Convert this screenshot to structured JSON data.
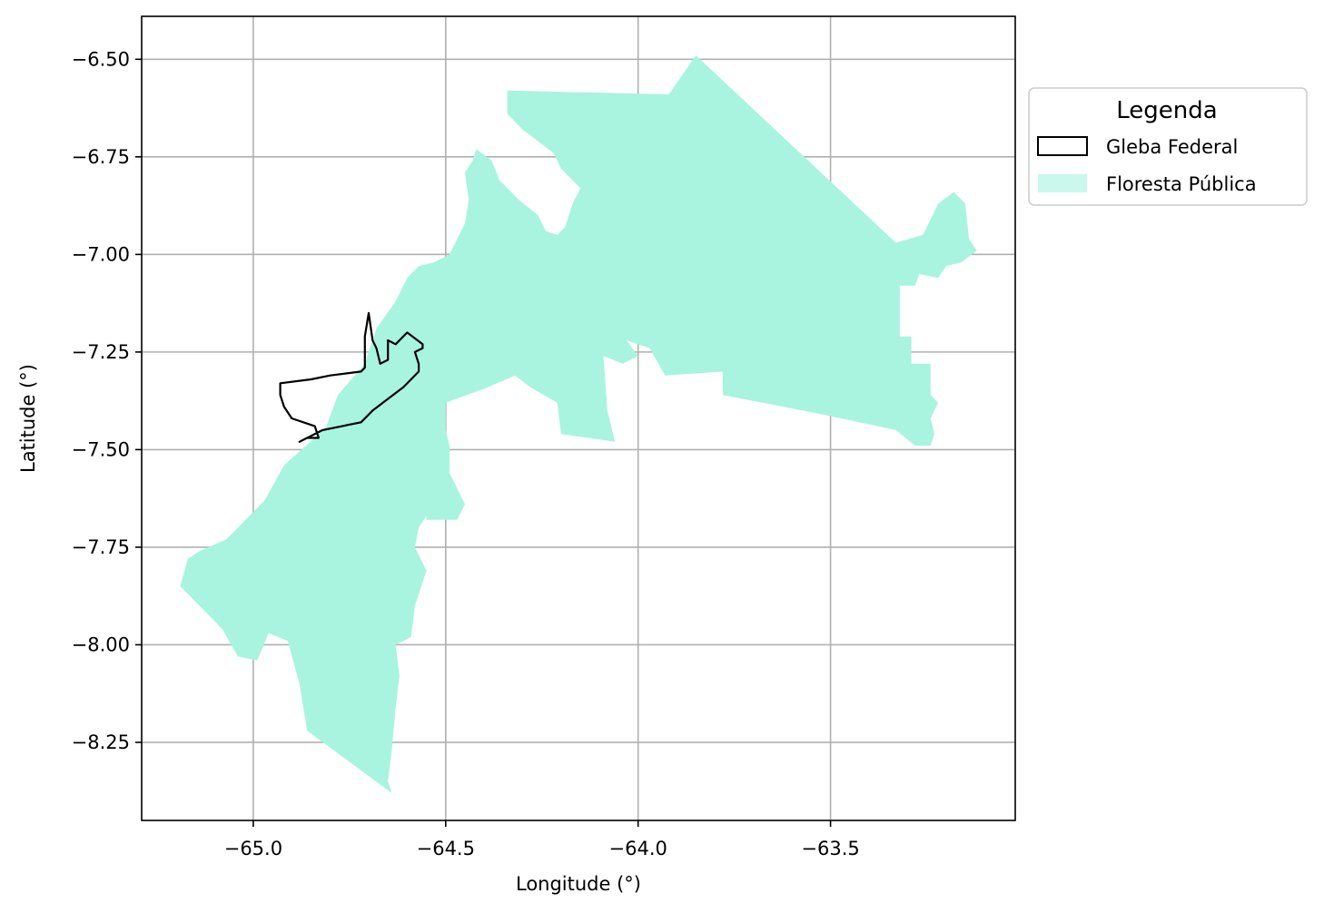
{
  "chart_data": {
    "type": "map",
    "xlabel": "Longitude (°)",
    "ylabel": "Latitude (°)",
    "xlim": [
      -65.29,
      -63.02
    ],
    "ylim": [
      -8.45,
      -6.39
    ],
    "xticks": [
      -65.0,
      -64.5,
      -64.0,
      -63.5
    ],
    "xtick_labels": [
      "−65.0",
      "−64.5",
      "−64.0",
      "−63.5"
    ],
    "yticks": [
      -6.5,
      -6.75,
      -7.0,
      -7.25,
      -7.5,
      -7.75,
      -8.0,
      -8.25
    ],
    "ytick_labels": [
      "−6.50",
      "−6.75",
      "−7.00",
      "−7.25",
      "−7.50",
      "−7.75",
      "−8.00",
      "−8.25"
    ],
    "grid": true,
    "legend": {
      "title": "Legenda",
      "placement": "outside-right-top",
      "entries": [
        {
          "label": "Gleba Federal",
          "style": "outline",
          "color": "#000000"
        },
        {
          "label": "Floresta Pública",
          "style": "fill",
          "color": "#a8f4df"
        }
      ]
    },
    "layers": [
      {
        "name": "Floresta Pública",
        "color": "#a8f4df",
        "polygons": [
          [
            [
              -64.34,
              -6.58
            ],
            [
              -63.92,
              -6.59
            ],
            [
              -63.85,
              -6.49
            ],
            [
              -63.33,
              -6.97
            ],
            [
              -63.26,
              -6.95
            ],
            [
              -63.22,
              -6.87
            ],
            [
              -63.18,
              -6.84
            ],
            [
              -63.15,
              -6.87
            ],
            [
              -63.14,
              -6.96
            ],
            [
              -63.12,
              -6.99
            ],
            [
              -63.16,
              -7.02
            ],
            [
              -63.2,
              -7.03
            ],
            [
              -63.22,
              -7.06
            ],
            [
              -63.27,
              -7.05
            ],
            [
              -63.28,
              -7.08
            ],
            [
              -63.32,
              -7.08
            ],
            [
              -63.32,
              -7.21
            ],
            [
              -63.29,
              -7.21
            ],
            [
              -63.29,
              -7.28
            ],
            [
              -63.24,
              -7.28
            ],
            [
              -63.24,
              -7.36
            ],
            [
              -63.22,
              -7.38
            ],
            [
              -63.24,
              -7.42
            ],
            [
              -63.23,
              -7.46
            ],
            [
              -63.24,
              -7.49
            ],
            [
              -63.28,
              -7.49
            ],
            [
              -63.33,
              -7.45
            ],
            [
              -63.52,
              -7.41
            ],
            [
              -63.78,
              -7.36
            ],
            [
              -63.78,
              -7.3
            ],
            [
              -63.93,
              -7.31
            ],
            [
              -63.97,
              -7.24
            ],
            [
              -64.03,
              -7.22
            ],
            [
              -64.0,
              -7.26
            ],
            [
              -64.04,
              -7.28
            ],
            [
              -64.09,
              -7.26
            ],
            [
              -64.08,
              -7.4
            ],
            [
              -64.06,
              -7.48
            ],
            [
              -64.2,
              -7.46
            ],
            [
              -64.21,
              -7.38
            ],
            [
              -64.28,
              -7.34
            ],
            [
              -64.32,
              -7.31
            ],
            [
              -64.39,
              -7.34
            ],
            [
              -64.5,
              -7.38
            ],
            [
              -64.5,
              -7.45
            ],
            [
              -64.49,
              -7.49
            ],
            [
              -64.49,
              -7.56
            ],
            [
              -64.47,
              -7.6
            ],
            [
              -64.45,
              -7.64
            ],
            [
              -64.47,
              -7.68
            ],
            [
              -64.55,
              -7.68
            ],
            [
              -64.55,
              -7.67
            ],
            [
              -64.57,
              -7.7
            ],
            [
              -64.58,
              -7.75
            ],
            [
              -64.55,
              -7.81
            ],
            [
              -64.58,
              -7.9
            ],
            [
              -64.59,
              -7.98
            ],
            [
              -64.63,
              -8.0
            ],
            [
              -64.62,
              -8.08
            ],
            [
              -64.63,
              -8.16
            ],
            [
              -64.64,
              -8.27
            ],
            [
              -64.65,
              -8.35
            ],
            [
              -64.64,
              -8.38
            ],
            [
              -64.86,
              -8.22
            ],
            [
              -64.88,
              -8.1
            ],
            [
              -64.91,
              -7.99
            ],
            [
              -64.96,
              -7.97
            ],
            [
              -64.99,
              -8.04
            ],
            [
              -65.04,
              -8.03
            ],
            [
              -65.08,
              -7.96
            ],
            [
              -65.16,
              -7.88
            ],
            [
              -65.19,
              -7.85
            ],
            [
              -65.17,
              -7.78
            ],
            [
              -65.14,
              -7.76
            ],
            [
              -65.07,
              -7.73
            ],
            [
              -64.97,
              -7.63
            ],
            [
              -64.92,
              -7.54
            ],
            [
              -64.84,
              -7.47
            ],
            [
              -64.81,
              -7.44
            ],
            [
              -64.78,
              -7.36
            ],
            [
              -64.71,
              -7.28
            ],
            [
              -64.68,
              -7.19
            ],
            [
              -64.63,
              -7.12
            ],
            [
              -64.6,
              -7.06
            ],
            [
              -64.57,
              -7.03
            ],
            [
              -64.53,
              -7.02
            ],
            [
              -64.49,
              -7.0
            ],
            [
              -64.47,
              -6.96
            ],
            [
              -64.45,
              -6.92
            ],
            [
              -64.44,
              -6.86
            ],
            [
              -64.45,
              -6.79
            ],
            [
              -64.43,
              -6.76
            ],
            [
              -64.42,
              -6.73
            ],
            [
              -64.38,
              -6.76
            ],
            [
              -64.36,
              -6.81
            ],
            [
              -64.33,
              -6.84
            ],
            [
              -64.31,
              -6.86
            ],
            [
              -64.26,
              -6.9
            ],
            [
              -64.24,
              -6.94
            ],
            [
              -64.21,
              -6.95
            ],
            [
              -64.19,
              -6.93
            ],
            [
              -64.17,
              -6.87
            ],
            [
              -64.15,
              -6.83
            ],
            [
              -64.17,
              -6.81
            ],
            [
              -64.2,
              -6.78
            ],
            [
              -64.22,
              -6.74
            ],
            [
              -64.26,
              -6.71
            ],
            [
              -64.3,
              -6.68
            ],
            [
              -64.34,
              -6.64
            ]
          ]
        ]
      },
      {
        "name": "Gleba Federal",
        "color": "#000000",
        "polygons": [
          [
            [
              -64.88,
              -7.48
            ],
            [
              -64.82,
              -7.45
            ],
            [
              -64.72,
              -7.43
            ],
            [
              -64.69,
              -7.4
            ],
            [
              -64.65,
              -7.37
            ],
            [
              -64.61,
              -7.34
            ],
            [
              -64.57,
              -7.3
            ],
            [
              -64.57,
              -7.28
            ],
            [
              -64.58,
              -7.25
            ],
            [
              -64.56,
              -7.24
            ],
            [
              -64.56,
              -7.23
            ],
            [
              -64.6,
              -7.2
            ],
            [
              -64.63,
              -7.23
            ],
            [
              -64.65,
              -7.22
            ],
            [
              -64.65,
              -7.27
            ],
            [
              -64.67,
              -7.28
            ],
            [
              -64.68,
              -7.24
            ],
            [
              -64.69,
              -7.22
            ],
            [
              -64.7,
              -7.15
            ],
            [
              -64.71,
              -7.21
            ],
            [
              -64.71,
              -7.29
            ],
            [
              -64.72,
              -7.3
            ],
            [
              -64.8,
              -7.31
            ],
            [
              -64.85,
              -7.32
            ],
            [
              -64.93,
              -7.33
            ],
            [
              -64.93,
              -7.36
            ],
            [
              -64.92,
              -7.39
            ],
            [
              -64.9,
              -7.42
            ],
            [
              -64.84,
              -7.44
            ],
            [
              -64.83,
              -7.47
            ],
            [
              -64.86,
              -7.47
            ]
          ]
        ]
      }
    ]
  }
}
